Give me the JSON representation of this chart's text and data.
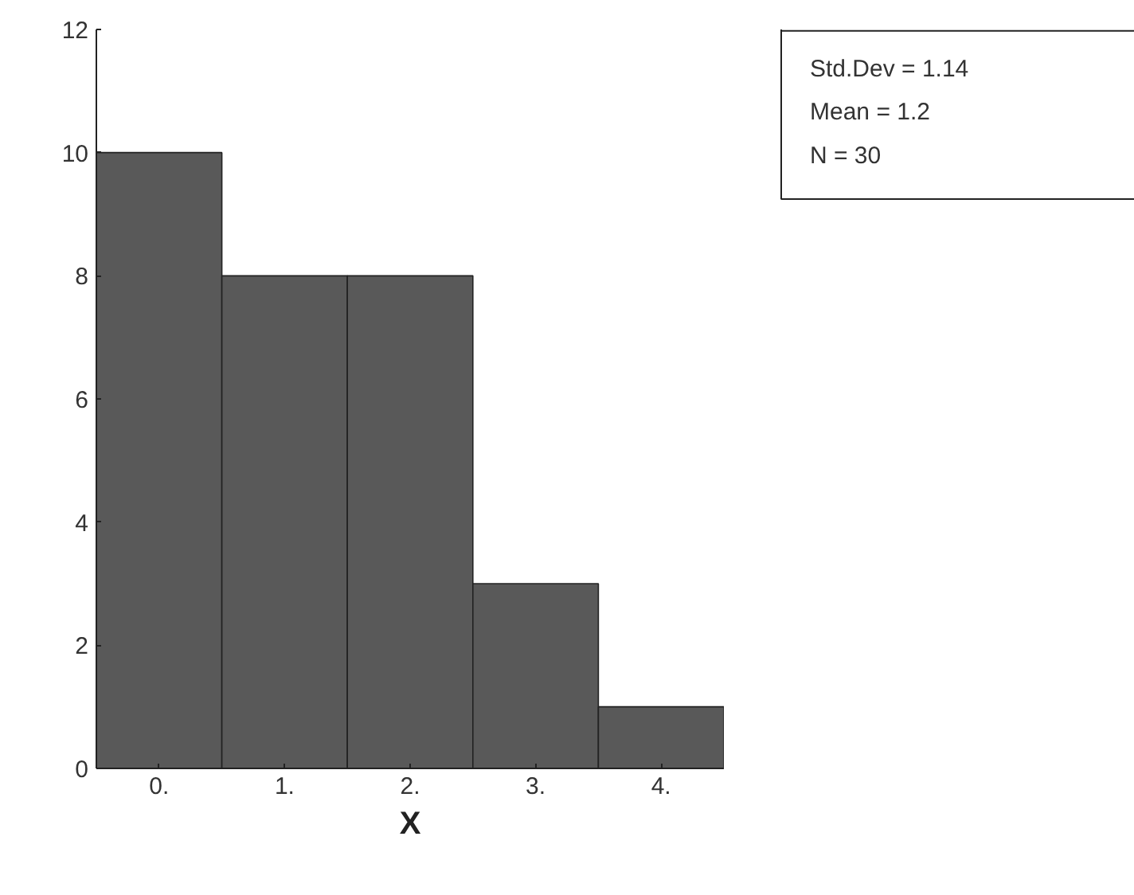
{
  "chart_data": {
    "type": "histogram",
    "xlabel": "X",
    "bins": [
      -0.5,
      0.5,
      1.5,
      2.5,
      3.5,
      4.5
    ],
    "values": [
      10,
      8,
      8,
      3,
      1
    ],
    "color": "#595959",
    "xlim": [
      -0.5,
      4.5
    ],
    "xticks": [
      {
        "value": 0,
        "label": "0."
      },
      {
        "value": 1,
        "label": "1."
      },
      {
        "value": 2,
        "label": "2."
      },
      {
        "value": 3,
        "label": "3."
      },
      {
        "value": 4,
        "label": "4."
      }
    ],
    "ylim": [
      0,
      12
    ],
    "yticks": [
      0,
      2,
      4,
      6,
      8,
      10,
      12
    ],
    "grid": false,
    "annotations": [
      "Std.Dev = 1.14",
      "Mean = 1.2",
      "N = 30"
    ]
  }
}
